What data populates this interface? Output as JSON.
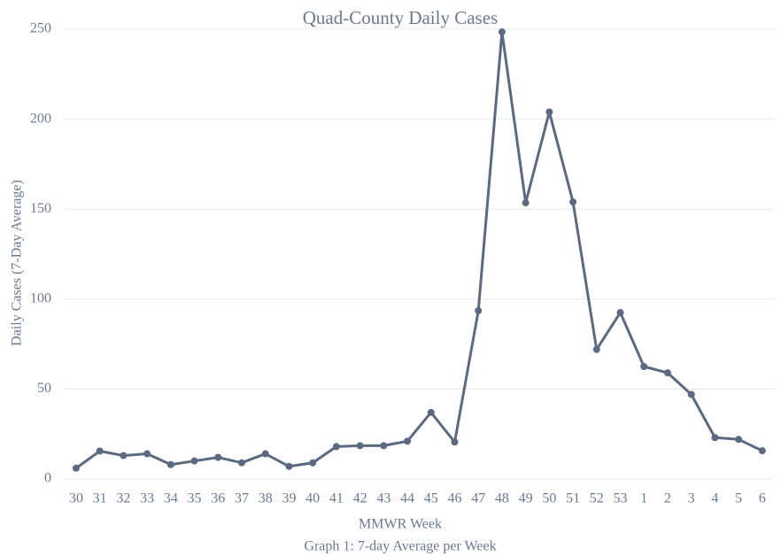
{
  "chart_data": {
    "type": "line",
    "title": "Quad-County Daily Cases",
    "x_label": "MMWR Week",
    "y_label": "Daily Cases (7-Day Average)",
    "caption": "Graph 1: 7-day Average per Week",
    "categories": [
      "30",
      "31",
      "32",
      "33",
      "34",
      "35",
      "36",
      "37",
      "38",
      "39",
      "40",
      "41",
      "42",
      "43",
      "44",
      "45",
      "46",
      "47",
      "48",
      "49",
      "50",
      "51",
      "52",
      "53",
      "1",
      "2",
      "3",
      "4",
      "5",
      "6"
    ],
    "series": [
      {
        "name": "Daily Cases",
        "color": "#5b6a80",
        "values": [
          6,
          15.5,
          13,
          14,
          8,
          10,
          12,
          9,
          14,
          7,
          9,
          18,
          18.5,
          18.5,
          21,
          37,
          20.5,
          93.5,
          248.5,
          153.5,
          204,
          154,
          72,
          92.5,
          62.5,
          59,
          47,
          23,
          22,
          15.7
        ]
      }
    ],
    "ylim": [
      0,
      250
    ],
    "yticks": [
      0,
      50,
      100,
      150,
      200,
      250
    ],
    "grid": true
  }
}
